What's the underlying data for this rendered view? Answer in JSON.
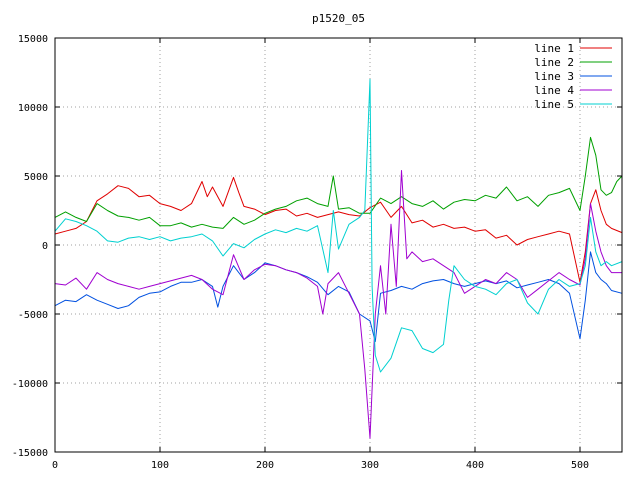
{
  "chart_data": {
    "type": "line",
    "title": "p1520_05",
    "xlabel": "",
    "ylabel": "",
    "xlim": [
      0,
      540
    ],
    "ylim": [
      -15000,
      15000
    ],
    "xticks": [
      0,
      100,
      200,
      300,
      400,
      500
    ],
    "yticks": [
      -15000,
      -10000,
      -5000,
      0,
      5000,
      10000,
      15000
    ],
    "grid": true,
    "legend_position": "top-right",
    "series": [
      {
        "name": "line 1",
        "color": "#e00000",
        "points": [
          [
            0,
            800
          ],
          [
            10,
            1000
          ],
          [
            20,
            1200
          ],
          [
            30,
            1700
          ],
          [
            40,
            3200
          ],
          [
            50,
            3700
          ],
          [
            60,
            4300
          ],
          [
            70,
            4100
          ],
          [
            80,
            3500
          ],
          [
            90,
            3600
          ],
          [
            100,
            3000
          ],
          [
            110,
            2800
          ],
          [
            120,
            2500
          ],
          [
            130,
            3000
          ],
          [
            140,
            4600
          ],
          [
            145,
            3500
          ],
          [
            150,
            4200
          ],
          [
            160,
            2800
          ],
          [
            170,
            4900
          ],
          [
            175,
            3800
          ],
          [
            180,
            2800
          ],
          [
            190,
            2600
          ],
          [
            200,
            2200
          ],
          [
            210,
            2500
          ],
          [
            220,
            2600
          ],
          [
            230,
            2100
          ],
          [
            240,
            2300
          ],
          [
            250,
            2000
          ],
          [
            260,
            2200
          ],
          [
            270,
            2400
          ],
          [
            280,
            2200
          ],
          [
            290,
            2100
          ],
          [
            300,
            2700
          ],
          [
            310,
            3100
          ],
          [
            320,
            2000
          ],
          [
            330,
            2800
          ],
          [
            340,
            1600
          ],
          [
            350,
            1800
          ],
          [
            360,
            1300
          ],
          [
            370,
            1500
          ],
          [
            380,
            1200
          ],
          [
            390,
            1300
          ],
          [
            400,
            1000
          ],
          [
            410,
            1100
          ],
          [
            420,
            500
          ],
          [
            430,
            700
          ],
          [
            440,
            0
          ],
          [
            450,
            400
          ],
          [
            460,
            600
          ],
          [
            470,
            800
          ],
          [
            480,
            1000
          ],
          [
            490,
            800
          ],
          [
            500,
            -2700
          ],
          [
            505,
            -500
          ],
          [
            510,
            3000
          ],
          [
            515,
            4000
          ],
          [
            520,
            2500
          ],
          [
            525,
            1500
          ],
          [
            530,
            1200
          ],
          [
            540,
            900
          ]
        ]
      },
      {
        "name": "line 2",
        "color": "#00a000",
        "points": [
          [
            0,
            2000
          ],
          [
            10,
            2400
          ],
          [
            20,
            2000
          ],
          [
            30,
            1700
          ],
          [
            40,
            3000
          ],
          [
            50,
            2500
          ],
          [
            60,
            2100
          ],
          [
            70,
            2000
          ],
          [
            80,
            1800
          ],
          [
            90,
            2000
          ],
          [
            100,
            1400
          ],
          [
            110,
            1400
          ],
          [
            120,
            1600
          ],
          [
            130,
            1300
          ],
          [
            140,
            1500
          ],
          [
            150,
            1300
          ],
          [
            160,
            1200
          ],
          [
            170,
            2000
          ],
          [
            180,
            1500
          ],
          [
            190,
            1800
          ],
          [
            200,
            2300
          ],
          [
            210,
            2600
          ],
          [
            220,
            2800
          ],
          [
            230,
            3200
          ],
          [
            240,
            3400
          ],
          [
            250,
            3000
          ],
          [
            260,
            2800
          ],
          [
            265,
            5000
          ],
          [
            270,
            2600
          ],
          [
            280,
            2700
          ],
          [
            290,
            2300
          ],
          [
            300,
            2300
          ],
          [
            310,
            3400
          ],
          [
            320,
            3000
          ],
          [
            330,
            3500
          ],
          [
            340,
            3000
          ],
          [
            350,
            2800
          ],
          [
            360,
            3200
          ],
          [
            370,
            2600
          ],
          [
            380,
            3100
          ],
          [
            390,
            3300
          ],
          [
            400,
            3200
          ],
          [
            410,
            3600
          ],
          [
            420,
            3400
          ],
          [
            430,
            4200
          ],
          [
            440,
            3200
          ],
          [
            450,
            3500
          ],
          [
            460,
            2800
          ],
          [
            470,
            3600
          ],
          [
            480,
            3800
          ],
          [
            490,
            4100
          ],
          [
            500,
            2500
          ],
          [
            505,
            5000
          ],
          [
            510,
            7800
          ],
          [
            515,
            6500
          ],
          [
            520,
            4000
          ],
          [
            525,
            3600
          ],
          [
            530,
            3800
          ],
          [
            535,
            4600
          ],
          [
            540,
            5000
          ]
        ]
      },
      {
        "name": "line 3",
        "color": "#0050e0",
        "points": [
          [
            0,
            -4400
          ],
          [
            10,
            -4000
          ],
          [
            20,
            -4100
          ],
          [
            30,
            -3600
          ],
          [
            40,
            -4000
          ],
          [
            50,
            -4300
          ],
          [
            60,
            -4600
          ],
          [
            70,
            -4400
          ],
          [
            80,
            -3800
          ],
          [
            90,
            -3500
          ],
          [
            100,
            -3400
          ],
          [
            110,
            -3000
          ],
          [
            120,
            -2700
          ],
          [
            130,
            -2700
          ],
          [
            140,
            -2500
          ],
          [
            150,
            -3000
          ],
          [
            155,
            -4500
          ],
          [
            160,
            -3000
          ],
          [
            170,
            -1500
          ],
          [
            180,
            -2500
          ],
          [
            190,
            -2000
          ],
          [
            200,
            -1300
          ],
          [
            210,
            -1500
          ],
          [
            220,
            -1800
          ],
          [
            230,
            -2000
          ],
          [
            240,
            -2300
          ],
          [
            250,
            -2700
          ],
          [
            260,
            -3600
          ],
          [
            270,
            -3000
          ],
          [
            280,
            -3400
          ],
          [
            290,
            -5000
          ],
          [
            300,
            -5500
          ],
          [
            305,
            -7000
          ],
          [
            310,
            -3500
          ],
          [
            320,
            -3300
          ],
          [
            330,
            -3000
          ],
          [
            340,
            -3200
          ],
          [
            350,
            -2800
          ],
          [
            360,
            -2600
          ],
          [
            370,
            -2500
          ],
          [
            380,
            -2800
          ],
          [
            390,
            -3000
          ],
          [
            400,
            -2800
          ],
          [
            410,
            -2600
          ],
          [
            420,
            -2800
          ],
          [
            430,
            -2600
          ],
          [
            440,
            -3100
          ],
          [
            450,
            -2900
          ],
          [
            460,
            -2700
          ],
          [
            470,
            -2500
          ],
          [
            480,
            -2800
          ],
          [
            490,
            -3500
          ],
          [
            500,
            -6800
          ],
          [
            505,
            -4000
          ],
          [
            510,
            -500
          ],
          [
            515,
            -2000
          ],
          [
            520,
            -2500
          ],
          [
            525,
            -2800
          ],
          [
            530,
            -3300
          ],
          [
            540,
            -3500
          ]
        ]
      },
      {
        "name": "line 4",
        "color": "#a000d0",
        "points": [
          [
            0,
            -2800
          ],
          [
            10,
            -2900
          ],
          [
            20,
            -2400
          ],
          [
            30,
            -3200
          ],
          [
            40,
            -2000
          ],
          [
            50,
            -2500
          ],
          [
            60,
            -2800
          ],
          [
            70,
            -3000
          ],
          [
            80,
            -3200
          ],
          [
            90,
            -3000
          ],
          [
            100,
            -2800
          ],
          [
            110,
            -2600
          ],
          [
            120,
            -2400
          ],
          [
            130,
            -2200
          ],
          [
            140,
            -2500
          ],
          [
            150,
            -3200
          ],
          [
            160,
            -3600
          ],
          [
            170,
            -700
          ],
          [
            180,
            -2500
          ],
          [
            190,
            -1800
          ],
          [
            200,
            -1400
          ],
          [
            210,
            -1500
          ],
          [
            220,
            -1800
          ],
          [
            230,
            -2000
          ],
          [
            240,
            -2400
          ],
          [
            250,
            -3000
          ],
          [
            255,
            -5000
          ],
          [
            260,
            -2800
          ],
          [
            270,
            -2000
          ],
          [
            280,
            -3500
          ],
          [
            290,
            -5000
          ],
          [
            295,
            -9000
          ],
          [
            300,
            -14000
          ],
          [
            305,
            -5000
          ],
          [
            310,
            -1500
          ],
          [
            315,
            -5000
          ],
          [
            320,
            1500
          ],
          [
            325,
            -3000
          ],
          [
            330,
            5400
          ],
          [
            335,
            -1000
          ],
          [
            340,
            -500
          ],
          [
            350,
            -1200
          ],
          [
            360,
            -1000
          ],
          [
            370,
            -1500
          ],
          [
            380,
            -2000
          ],
          [
            390,
            -3500
          ],
          [
            400,
            -3000
          ],
          [
            410,
            -2500
          ],
          [
            420,
            -2800
          ],
          [
            430,
            -2000
          ],
          [
            440,
            -2500
          ],
          [
            450,
            -3800
          ],
          [
            460,
            -3200
          ],
          [
            470,
            -2600
          ],
          [
            480,
            -2000
          ],
          [
            490,
            -2500
          ],
          [
            500,
            -2900
          ],
          [
            505,
            -1000
          ],
          [
            510,
            3000
          ],
          [
            515,
            1000
          ],
          [
            520,
            -500
          ],
          [
            525,
            -1500
          ],
          [
            530,
            -2000
          ],
          [
            540,
            -2000
          ]
        ]
      },
      {
        "name": "line 5",
        "color": "#00d0d0",
        "points": [
          [
            0,
            1000
          ],
          [
            10,
            1900
          ],
          [
            20,
            1700
          ],
          [
            30,
            1400
          ],
          [
            40,
            1000
          ],
          [
            50,
            300
          ],
          [
            60,
            200
          ],
          [
            70,
            500
          ],
          [
            80,
            600
          ],
          [
            90,
            400
          ],
          [
            100,
            600
          ],
          [
            110,
            300
          ],
          [
            120,
            500
          ],
          [
            130,
            600
          ],
          [
            140,
            800
          ],
          [
            150,
            300
          ],
          [
            160,
            -800
          ],
          [
            170,
            100
          ],
          [
            180,
            -200
          ],
          [
            190,
            400
          ],
          [
            200,
            800
          ],
          [
            210,
            1100
          ],
          [
            220,
            900
          ],
          [
            230,
            1200
          ],
          [
            240,
            1000
          ],
          [
            250,
            1400
          ],
          [
            260,
            -2000
          ],
          [
            265,
            2500
          ],
          [
            270,
            -300
          ],
          [
            280,
            1500
          ],
          [
            290,
            2000
          ],
          [
            295,
            2500
          ],
          [
            300,
            12000
          ],
          [
            302,
            -3000
          ],
          [
            305,
            -8000
          ],
          [
            310,
            -9200
          ],
          [
            320,
            -8200
          ],
          [
            330,
            -6000
          ],
          [
            340,
            -6200
          ],
          [
            350,
            -7500
          ],
          [
            360,
            -7800
          ],
          [
            370,
            -7200
          ],
          [
            375,
            -4000
          ],
          [
            380,
            -1500
          ],
          [
            390,
            -2500
          ],
          [
            400,
            -3000
          ],
          [
            410,
            -3200
          ],
          [
            420,
            -3600
          ],
          [
            430,
            -2800
          ],
          [
            440,
            -2500
          ],
          [
            450,
            -4200
          ],
          [
            460,
            -5000
          ],
          [
            470,
            -3200
          ],
          [
            480,
            -2500
          ],
          [
            490,
            -3000
          ],
          [
            500,
            -2800
          ],
          [
            505,
            -1500
          ],
          [
            510,
            2000
          ],
          [
            515,
            -500
          ],
          [
            520,
            -1500
          ],
          [
            525,
            -1200
          ],
          [
            530,
            -1500
          ],
          [
            540,
            -1200
          ]
        ]
      }
    ]
  }
}
